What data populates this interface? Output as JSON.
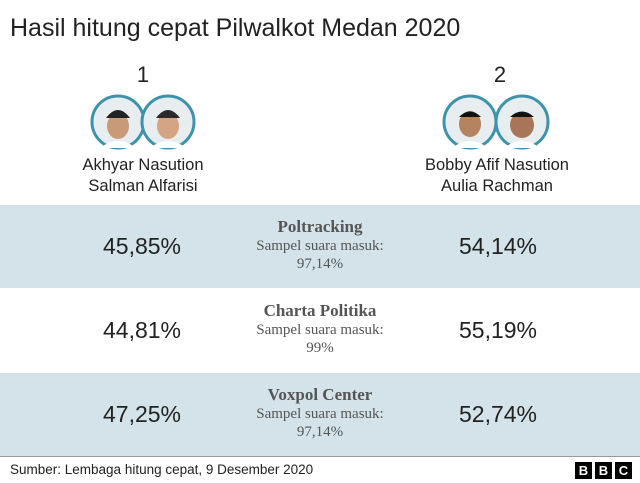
{
  "title": "Hasil hitung cepat Pilwalkot Medan 2020",
  "candidates": [
    {
      "number": "1",
      "names": [
        "Akhyar Nasution",
        "Salman Alfarisi"
      ]
    },
    {
      "number": "2",
      "names": [
        "Bobby Afif Nasution",
        "Aulia Rachman"
      ]
    }
  ],
  "table": {
    "rows": [
      {
        "left": "45,85%",
        "pollster": "Poltracking",
        "sample_label": "Sampel suara masuk:",
        "sample": "97,14%",
        "right": "54,14%"
      },
      {
        "left": "44,81%",
        "pollster": "Charta Politika",
        "sample_label": "Sampel suara masuk:",
        "sample": "99%",
        "right": "55,19%"
      },
      {
        "left": "47,25%",
        "pollster": "Voxpol Center",
        "sample_label": "Sampel suara masuk:",
        "sample": "97,14%",
        "right": "52,74%"
      }
    ]
  },
  "source": "Sumber: Lembaga hitung cepat, 9 Desember 2020",
  "logo": [
    "B",
    "B",
    "C"
  ]
}
